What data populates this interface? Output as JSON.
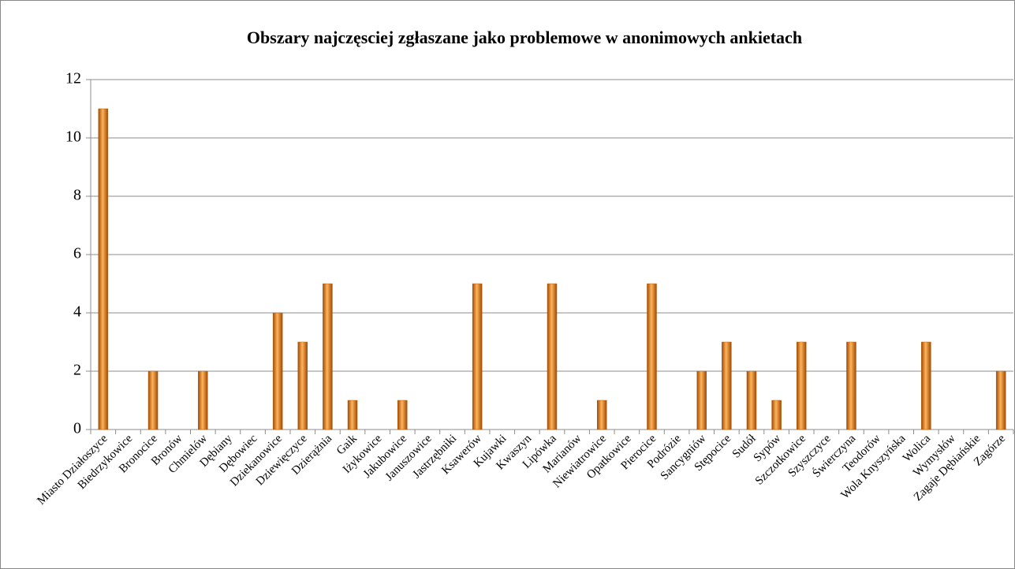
{
  "chart_data": {
    "type": "bar",
    "title": "Obszary najczęsciej zgłaszane jako problemowe w anonimowych ankietach",
    "categories": [
      "Miasto Działoszyce",
      "Biedrzykowice",
      "Bronocice",
      "Bronów",
      "Chmielów",
      "Dębiany",
      "Dębowiec",
      "Dziekanowice",
      "Dziewięczyce",
      "Dzierążnia",
      "Gaik",
      "Iżykowice",
      "Jakubowice",
      "Januszowice",
      "Jastrzębniki",
      "Ksawerów",
      "Kujawki",
      "Kwaszyn",
      "Lipówka",
      "Marianów",
      "Niewiatrowice",
      "Opatkowice",
      "Pierocice",
      "Podrózie",
      "Sancygniów",
      "Stępocice",
      "Sudół",
      "Sypów",
      "Szczotkowice",
      "Szyszczyce",
      "Świerczyna",
      "Teodorów",
      "Wola Knyszyńska",
      "Wolica",
      "Wymysłów",
      "Zagaje Dębiańskie",
      "Zagórze"
    ],
    "values": [
      11,
      0,
      2,
      0,
      2,
      0,
      0,
      4,
      3,
      5,
      1,
      0,
      1,
      0,
      0,
      5,
      0,
      0,
      5,
      0,
      1,
      0,
      5,
      0,
      2,
      3,
      2,
      1,
      3,
      0,
      3,
      0,
      0,
      3,
      0,
      0,
      2
    ],
    "color": "#e8821e",
    "ylim": [
      0,
      12
    ],
    "yticks": [
      0,
      2,
      4,
      6,
      8,
      10,
      12
    ],
    "grid": true
  }
}
